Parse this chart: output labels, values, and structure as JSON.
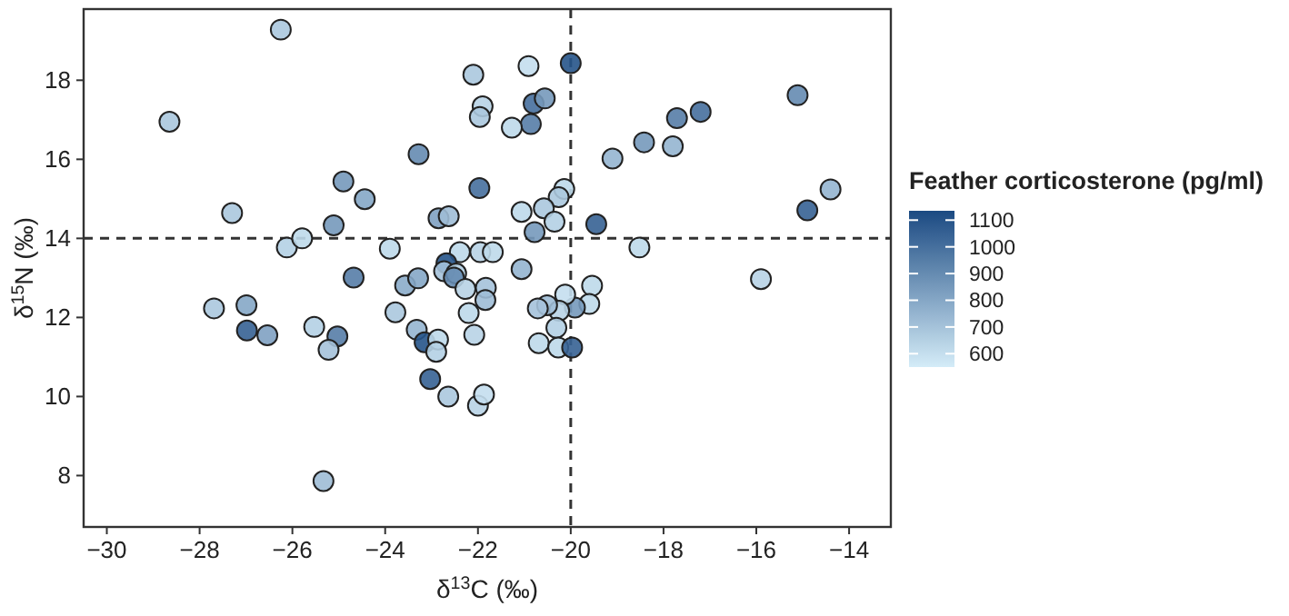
{
  "chart_data": {
    "type": "scatter",
    "xlabel": "δ$^{13}$C (‰)",
    "ylabel": "δ$^{15}$N (‰)",
    "clabel": "Feather corticosterone (pg/ml)",
    "xlim": [
      -30.5,
      -13.1
    ],
    "xticks": [
      -30,
      -28,
      -26,
      -24,
      -22,
      -20,
      -18,
      -16,
      -14
    ],
    "ylim": [
      6.7,
      19.8
    ],
    "yticks": [
      8,
      10,
      12,
      14,
      16,
      18
    ],
    "clim": [
      550,
      1135
    ],
    "cticks": [
      600,
      700,
      800,
      900,
      1000,
      1100
    ],
    "colors": [
      "#d4ecf8",
      "#1b4a82"
    ],
    "grid": false,
    "marker": "circle",
    "ref_lines": [
      {
        "axis": "x",
        "value": -20,
        "line_style": "dashed",
        "color": "#333333"
      },
      {
        "axis": "y",
        "value": 14,
        "line_style": "dashed",
        "color": "#333333"
      }
    ],
    "series": [
      {
        "x": [
          -26.25,
          -28.65,
          -27.3,
          -26.12,
          -25.79,
          -25.11,
          -24.9,
          -24.44,
          -23.9,
          -23.28,
          -21.97,
          -22.85,
          -22.63,
          -22.1,
          -21.9,
          -21.96,
          -20.91,
          -20.0,
          -20.8,
          -20.56,
          -20.86,
          -21.27,
          -19.1,
          -18.42,
          -17.8,
          -17.71,
          -17.2,
          -15.11,
          -14.4,
          -14.9,
          -19.45,
          -18.52,
          -20.14,
          -20.26,
          -20.58,
          -21.06,
          -20.35,
          -20.78,
          -22.39,
          -21.95,
          -21.68,
          -21.06,
          -22.68,
          -22.73,
          -22.47,
          -22.52,
          -22.27,
          -21.83,
          -21.84,
          -22.2,
          -22.08,
          -23.57,
          -23.29,
          -24.68,
          -23.78,
          -27.69,
          -26.99,
          -26.98,
          -26.54,
          -25.53,
          -25.03,
          -25.22,
          -23.32,
          -23.15,
          -22.86,
          -22.9,
          -23.03,
          -22.64,
          -22.0,
          -21.87,
          -25.33,
          -19.54,
          -19.6,
          -19.91,
          -20.12,
          -20.25,
          -20.51,
          -20.71,
          -20.31,
          -20.69,
          -20.27,
          -19.97,
          -15.9
        ],
        "values": [
          19.28,
          16.95,
          14.64,
          13.77,
          14.0,
          14.33,
          15.44,
          14.99,
          13.74,
          16.13,
          15.27,
          14.51,
          14.56,
          18.14,
          17.34,
          17.07,
          18.36,
          18.43,
          17.41,
          17.54,
          16.89,
          16.8,
          16.02,
          16.43,
          16.33,
          17.04,
          17.2,
          17.62,
          15.24,
          14.71,
          14.36,
          13.77,
          15.25,
          15.04,
          14.76,
          14.67,
          14.42,
          14.16,
          13.65,
          13.65,
          13.65,
          13.22,
          13.37,
          13.17,
          13.11,
          13.01,
          12.72,
          12.75,
          12.44,
          12.11,
          11.56,
          12.81,
          12.99,
          13.01,
          12.13,
          12.23,
          12.31,
          11.67,
          11.55,
          11.76,
          11.52,
          11.18,
          11.69,
          11.37,
          11.44,
          11.13,
          10.44,
          10.0,
          9.77,
          10.05,
          7.86,
          12.8,
          12.34,
          12.25,
          12.58,
          12.17,
          12.31,
          12.23,
          11.74,
          11.35,
          11.24,
          11.24,
          12.97
        ],
        "cvalues": [
          680,
          680,
          680,
          650,
          620,
          850,
          850,
          800,
          620,
          900,
          1000,
          820,
          720,
          680,
          640,
          680,
          600,
          1100,
          1000,
          850,
          950,
          620,
          750,
          850,
          750,
          950,
          1000,
          900,
          750,
          1050,
          1050,
          620,
          620,
          680,
          680,
          620,
          650,
          850,
          620,
          640,
          620,
          750,
          1100,
          700,
          660,
          900,
          640,
          700,
          720,
          620,
          640,
          780,
          800,
          950,
          680,
          680,
          800,
          1050,
          820,
          650,
          950,
          700,
          750,
          1100,
          620,
          650,
          1050,
          680,
          640,
          600,
          720,
          620,
          620,
          850,
          600,
          640,
          720,
          700,
          650,
          620,
          620,
          1050,
          640
        ]
      }
    ]
  }
}
